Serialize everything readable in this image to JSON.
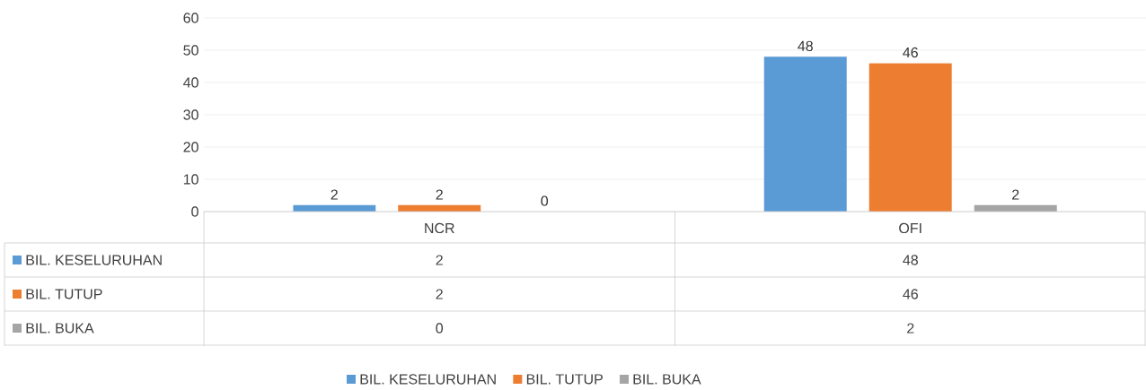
{
  "chart_data": {
    "type": "bar",
    "categories": [
      "NCR",
      "OFI"
    ],
    "series": [
      {
        "name": "BIL. KESELURUHAN",
        "color": "#5b9bd5",
        "values": [
          2,
          48
        ],
        "value_labels": [
          "2",
          "48"
        ]
      },
      {
        "name": "BIL. TUTUP",
        "color": "#ed7d31",
        "values": [
          2,
          46
        ],
        "value_labels": [
          "2",
          "46"
        ]
      },
      {
        "name": "BIL. BUKA",
        "color": "#a5a5a5",
        "values": [
          0,
          2
        ],
        "value_labels": [
          "0",
          "2"
        ]
      }
    ],
    "ylim": [
      0,
      60
    ],
    "yticks": [
      0,
      10,
      20,
      30,
      40,
      50,
      60
    ],
    "grid": "y",
    "legend": "bottom"
  }
}
